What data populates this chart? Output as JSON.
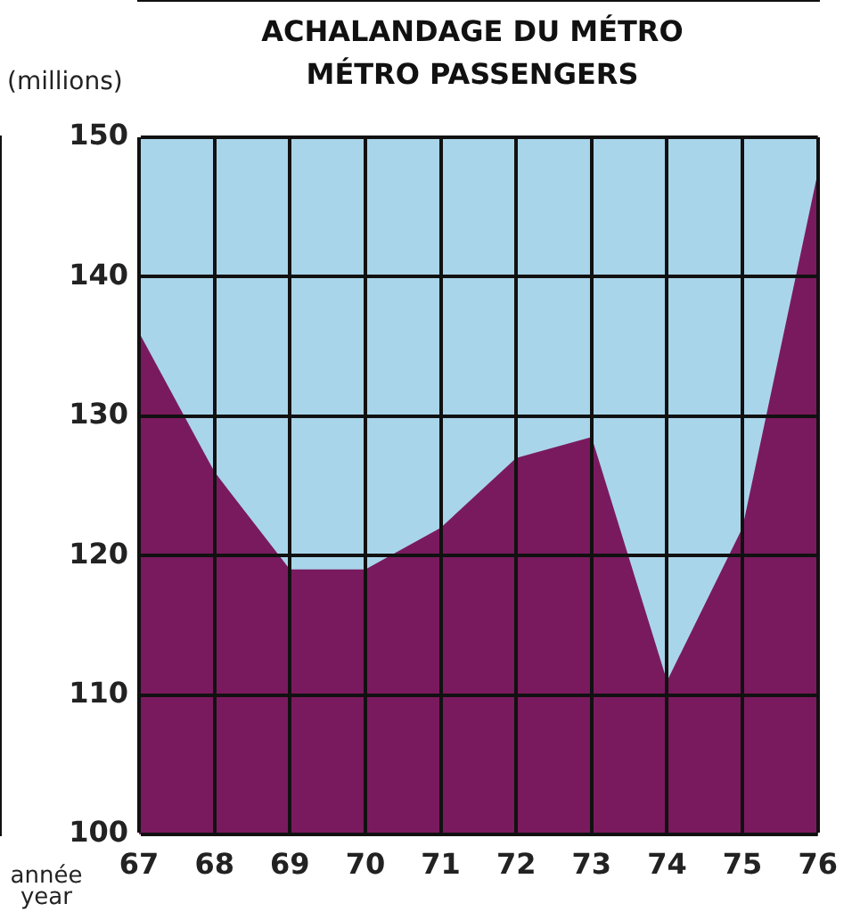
{
  "chart_data": {
    "type": "area",
    "title": "ACHALANDAGE DU MÉTRO",
    "subtitle": "MÉTRO PASSENGERS",
    "ylabel": "(millions)",
    "xlabel": "année year",
    "categories": [
      "67",
      "68",
      "69",
      "70",
      "71",
      "72",
      "73",
      "74",
      "75",
      "76"
    ],
    "series": [
      {
        "color": "#7a1a5e",
        "values": [
          136,
          126,
          119,
          119,
          122,
          127,
          128.5,
          111,
          122,
          147.5
        ]
      }
    ],
    "ylim": [
      100,
      150
    ],
    "yticks": [
      100,
      110,
      120,
      130,
      140,
      150
    ],
    "grid": true,
    "legend": false
  }
}
